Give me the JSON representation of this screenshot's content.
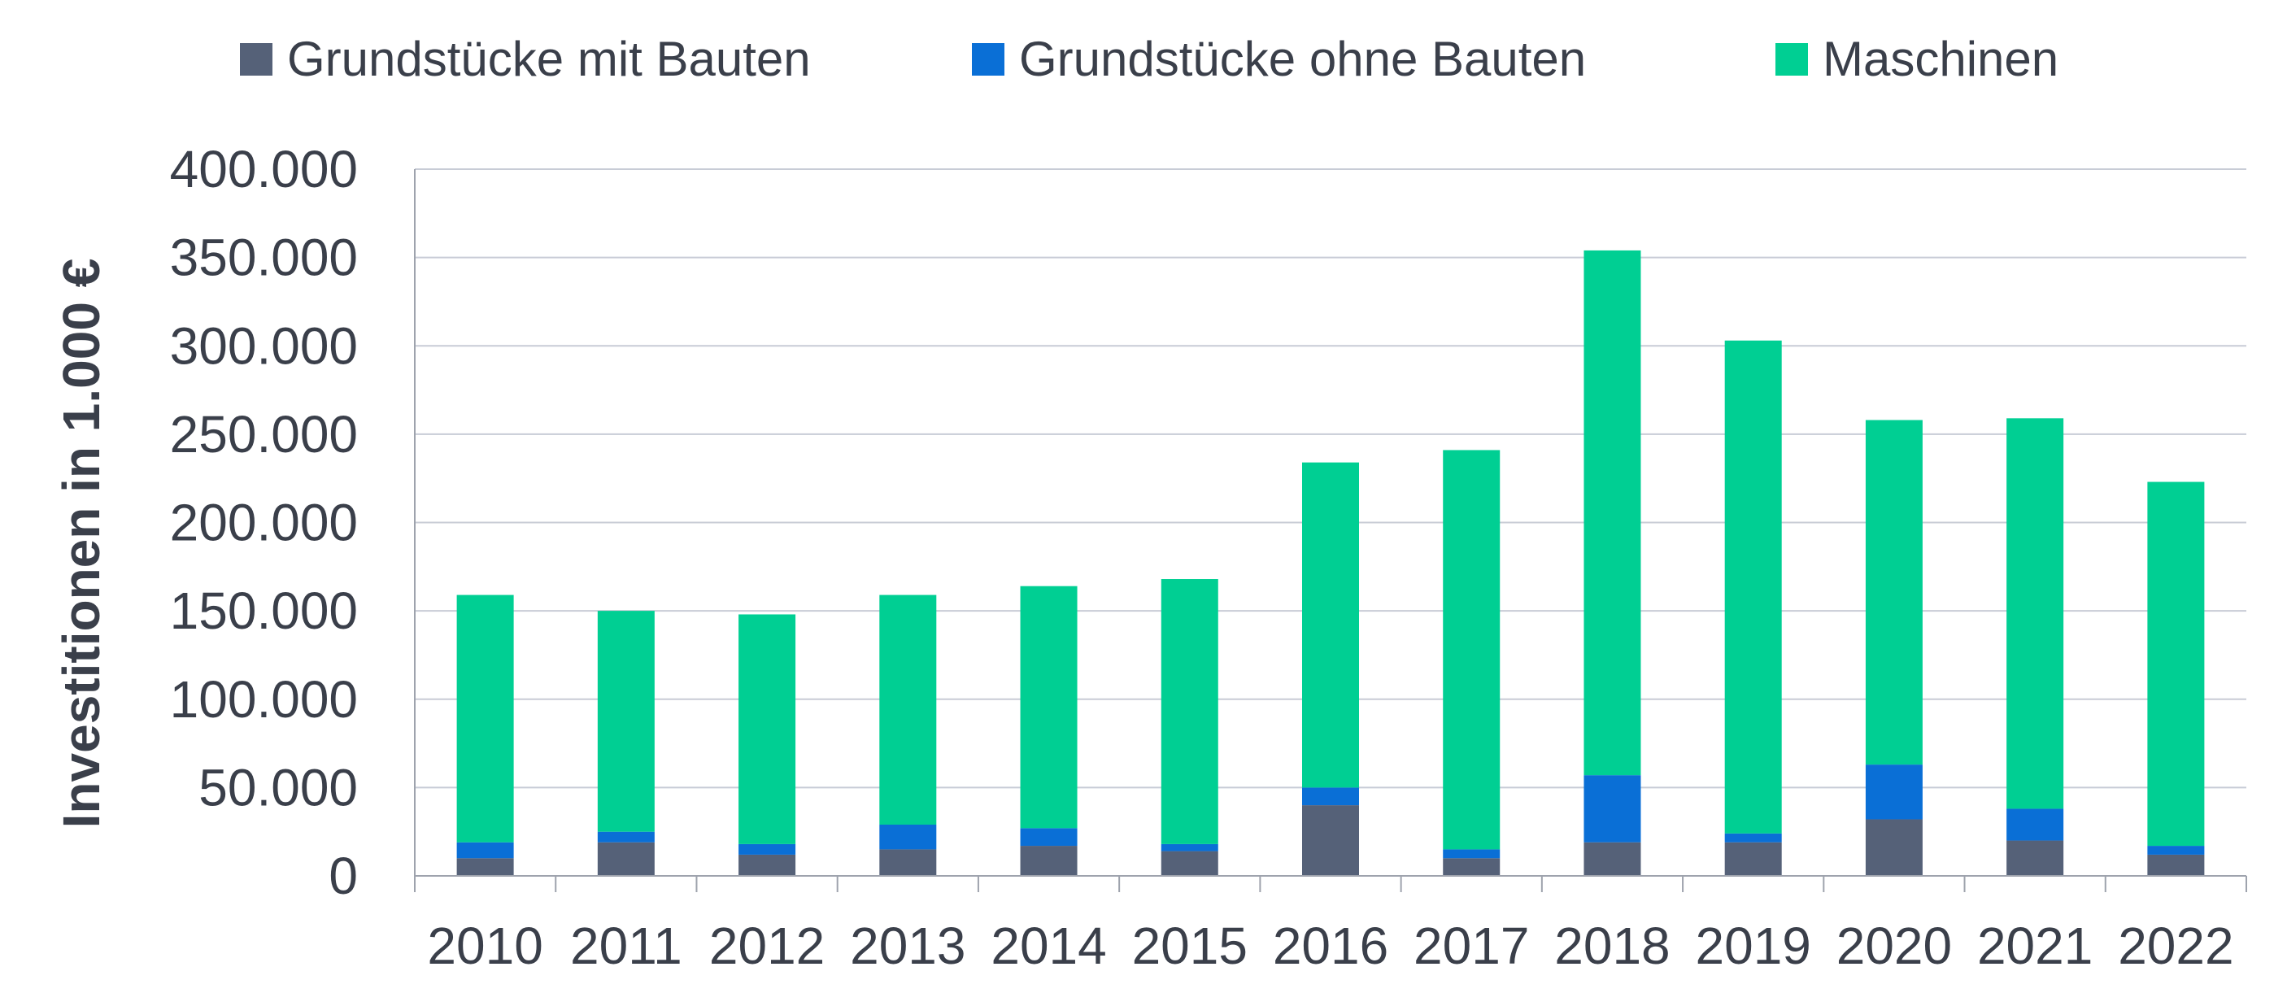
{
  "chart_data": {
    "type": "bar",
    "stacked": true,
    "title": "",
    "xlabel": "",
    "ylabel": "Investitionen in 1.000 €",
    "ylim": [
      0,
      400000
    ],
    "yticks": [
      "0",
      "50.000",
      "100.000",
      "150.000",
      "200.000",
      "250.000",
      "300.000",
      "350.000",
      "400.000"
    ],
    "ytick_values": [
      0,
      50000,
      100000,
      150000,
      200000,
      250000,
      300000,
      350000,
      400000
    ],
    "grid": true,
    "legend_position": "top",
    "categories": [
      "2010",
      "2011",
      "2012",
      "2013",
      "2014",
      "2015",
      "2016",
      "2017",
      "2018",
      "2019",
      "2020",
      "2021",
      "2022"
    ],
    "series": [
      {
        "name": "Grundstücke mit Bauten",
        "color": "#556178",
        "values": [
          10000,
          19000,
          12000,
          15000,
          17000,
          14000,
          40000,
          10000,
          19000,
          19000,
          32000,
          20000,
          12000
        ]
      },
      {
        "name": "Grundstücke ohne Bauten",
        "color": "#0a6fd6",
        "values": [
          9000,
          6000,
          6000,
          14000,
          10000,
          4000,
          10000,
          5000,
          38000,
          5000,
          31000,
          18000,
          5000
        ]
      },
      {
        "name": "Maschinen",
        "color": "#00cf93",
        "values": [
          140000,
          125000,
          130000,
          130000,
          137000,
          150000,
          184000,
          226000,
          297000,
          279000,
          195000,
          221000,
          206000
        ]
      }
    ]
  }
}
